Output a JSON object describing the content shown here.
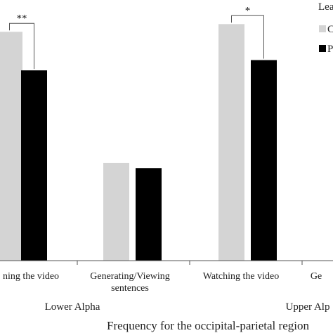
{
  "chart_data": {
    "type": "bar",
    "xlabel": "Frequency for the occipital-parietal region",
    "legend": {
      "title_visible": "Lea",
      "placement": "top-right",
      "entries_visible": [
        "C",
        "P"
      ]
    },
    "band_labels": [
      "Lower Alpha",
      "Upper Alp"
    ],
    "category_labels": [
      [
        "ning the video"
      ],
      [
        "Generating/Viewing",
        "sentences"
      ],
      [
        "Watching the video"
      ],
      [
        "Ge"
      ]
    ],
    "groups": [
      {
        "name": "C",
        "color": "#d4d4d4"
      },
      {
        "name": "P",
        "color": "#000000"
      }
    ],
    "bars": [
      {
        "category": 0,
        "group": 0,
        "value": 0.89
      },
      {
        "category": 0,
        "group": 1,
        "value": 0.74
      },
      {
        "category": 1,
        "group": 0,
        "value": 0.38
      },
      {
        "category": 1,
        "group": 1,
        "value": 0.36
      },
      {
        "category": 2,
        "group": 0,
        "value": 0.92
      },
      {
        "category": 2,
        "group": 1,
        "value": 0.78
      }
    ],
    "significance": [
      {
        "category": 0,
        "label": "**"
      },
      {
        "category": 2,
        "label": "*"
      }
    ],
    "ylim": [
      0,
      1
    ],
    "grid": false
  }
}
